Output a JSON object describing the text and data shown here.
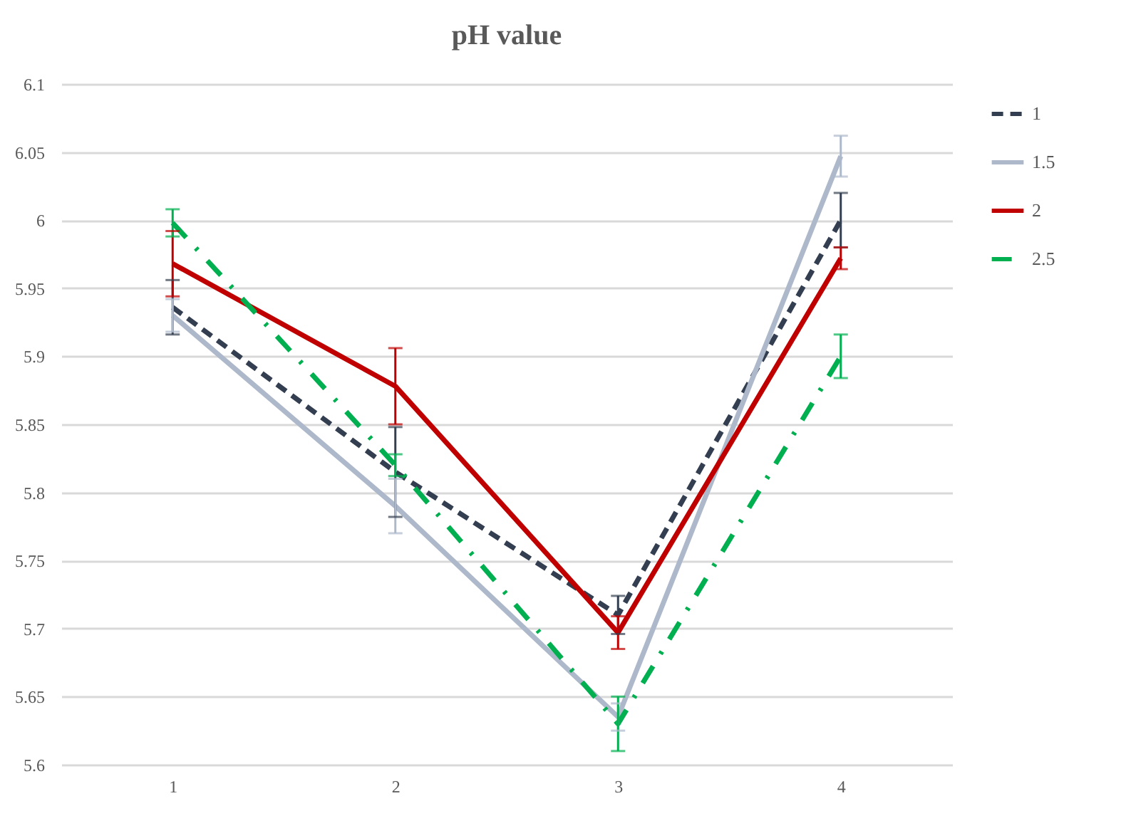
{
  "chart_data": {
    "type": "line",
    "title": "pH value",
    "categories": [
      "1",
      "2",
      "3",
      "4"
    ],
    "series": [
      {
        "name": "1",
        "color": "#333f50",
        "line_style": "dashed",
        "values": [
          5.936,
          5.815,
          5.71,
          6.0
        ],
        "errors": [
          0.02,
          0.033,
          0.014,
          0.02
        ]
      },
      {
        "name": "1.5",
        "color": "#adb9ca",
        "line_style": "solid",
        "values": [
          5.93,
          5.79,
          5.635,
          6.047
        ],
        "errors": [
          0.012,
          0.02,
          0.01,
          0.015
        ]
      },
      {
        "name": "2",
        "color": "#c00000",
        "line_style": "solid",
        "values": [
          5.968,
          5.878,
          5.697,
          5.972
        ],
        "errors": [
          0.024,
          0.028,
          0.012,
          0.008
        ]
      },
      {
        "name": "2.5",
        "color": "#00b050",
        "line_style": "dashdot",
        "values": [
          5.998,
          5.82,
          5.63,
          5.9
        ],
        "errors": [
          0.01,
          0.008,
          0.02,
          0.016
        ]
      }
    ],
    "ylim": [
      5.6,
      6.1
    ],
    "yticks": [
      5.6,
      5.65,
      5.7,
      5.75,
      5.8,
      5.85,
      5.9,
      5.95,
      6,
      6.05,
      6.1
    ],
    "grid": "y",
    "legend": "right",
    "marker": "none"
  }
}
